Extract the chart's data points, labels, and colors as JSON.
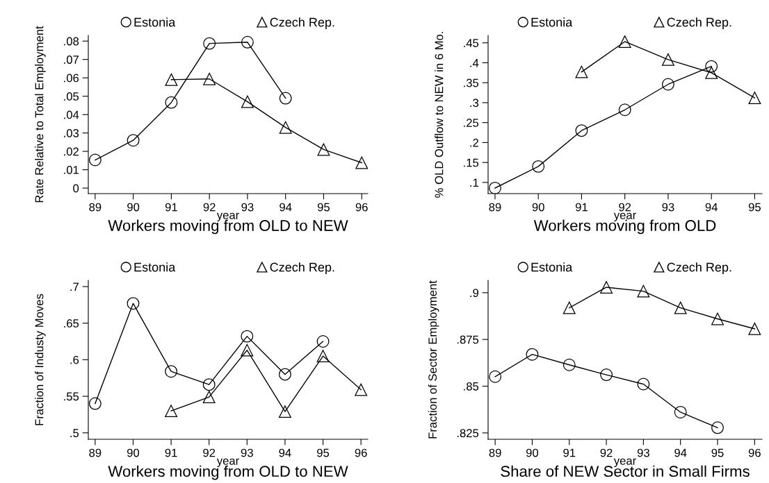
{
  "chart_data": [
    {
      "type": "line",
      "title": "Workers moving from OLD to NEW",
      "xlabel": "year",
      "ylabel": "Rate Relative to Total Employment",
      "legend": "top",
      "grid": false,
      "line_style": "solid",
      "xlim": [
        88.82,
        96.16
      ],
      "xticks": [
        89,
        90,
        91,
        92,
        93,
        94,
        95,
        96
      ],
      "ylim": [
        -0.003,
        0.0831
      ],
      "yticks": [
        0,
        {
          "value": 0.01,
          "label": ".01"
        },
        {
          "value": 0.02,
          "label": ".02"
        },
        {
          "value": 0.03,
          "label": ".03"
        },
        {
          "value": 0.04,
          "label": ".04"
        },
        {
          "value": 0.05,
          "label": ".05"
        },
        {
          "value": 0.06,
          "label": ".06"
        },
        {
          "value": 0.07,
          "label": ".07"
        },
        {
          "value": 0.08,
          "label": ".08"
        }
      ],
      "series": [
        {
          "name": "Estonia",
          "color": "#000000",
          "marker": "circle",
          "x": [
            89,
            90,
            91,
            92,
            93,
            94
          ],
          "values": [
            0.0153,
            0.026,
            0.0466,
            0.0787,
            0.0794,
            0.0489
          ]
        },
        {
          "name": "Czech Rep.",
          "color": "#000000",
          "marker": "triangle",
          "x": [
            91,
            92,
            93,
            94,
            95,
            96
          ],
          "values": [
            0.059,
            0.0594,
            0.047,
            0.033,
            0.021,
            0.0138
          ]
        }
      ]
    },
    {
      "type": "line",
      "title": "Workers moving from OLD",
      "xlabel": "year",
      "ylabel": "% OLD Outflow to NEW in 6 Mo.",
      "legend": "top",
      "grid": false,
      "line_style": "solid",
      "xlim": [
        88.84,
        95.17
      ],
      "xticks": [
        89,
        90,
        91,
        92,
        93,
        94,
        95
      ],
      "ylim": [
        0.072,
        0.4686
      ],
      "yticks": [
        {
          "value": 0.1,
          "label": ".1"
        },
        {
          "value": 0.15,
          "label": ".15"
        },
        {
          "value": 0.2,
          "label": ".2"
        },
        {
          "value": 0.25,
          "label": ".25"
        },
        {
          "value": 0.3,
          "label": ".3"
        },
        {
          "value": 0.35,
          "label": ".35"
        },
        {
          "value": 0.4,
          "label": ".4"
        },
        {
          "value": 0.45,
          "label": ".45"
        }
      ],
      "series": [
        {
          "name": "Estonia",
          "color": "#000000",
          "marker": "circle",
          "x": [
            89,
            90,
            91,
            92,
            93,
            94
          ],
          "values": [
            0.086,
            0.14,
            0.23,
            0.282,
            0.346,
            0.391
          ]
        },
        {
          "name": "Czech Rep.",
          "color": "#000000",
          "marker": "triangle",
          "x": [
            91,
            92,
            93,
            94,
            95
          ],
          "values": [
            0.377,
            0.453,
            0.408,
            0.375,
            0.312
          ]
        }
      ]
    },
    {
      "type": "line",
      "title": "Workers moving from OLD to NEW",
      "xlabel": "year",
      "ylabel": "Fraction of Industy Moves",
      "legend": "top",
      "grid": false,
      "line_style": "solid",
      "xlim": [
        88.82,
        96.18
      ],
      "xticks": [
        89,
        90,
        91,
        92,
        93,
        94,
        95,
        96
      ],
      "ylim": [
        0.4912,
        0.7085
      ],
      "yticks": [
        {
          "value": 0.5,
          "label": ".5"
        },
        {
          "value": 0.55,
          "label": ".55"
        },
        {
          "value": 0.6,
          "label": ".6"
        },
        {
          "value": 0.65,
          "label": ".65"
        },
        {
          "value": 0.7,
          "label": ".7"
        }
      ],
      "series": [
        {
          "name": "Estonia",
          "color": "#000000",
          "marker": "circle",
          "x": [
            89,
            90,
            91,
            92,
            93,
            94,
            95
          ],
          "values": [
            0.54,
            0.677,
            0.584,
            0.566,
            0.632,
            0.58,
            0.625
          ]
        },
        {
          "name": "Czech Rep.",
          "color": "#000000",
          "marker": "triangle",
          "x": [
            91,
            92,
            93,
            94,
            95,
            96
          ],
          "values": [
            0.53,
            0.549,
            0.613,
            0.529,
            0.605,
            0.559
          ]
        }
      ]
    },
    {
      "type": "line",
      "title": "Share of NEW Sector in Small Firms",
      "xlabel": "year",
      "ylabel": "Fraction of Sector Employment",
      "legend": "top",
      "grid": false,
      "line_style": "solid",
      "xlim": [
        88.81,
        96.2
      ],
      "xticks": [
        89,
        90,
        91,
        92,
        93,
        94,
        95,
        96
      ],
      "ylim": [
        0.8216,
        0.9066
      ],
      "yticks": [
        {
          "value": 0.825,
          "label": ".825"
        },
        {
          "value": 0.85,
          "label": ".85"
        },
        {
          "value": 0.875,
          "label": ".875"
        },
        {
          "value": 0.9,
          "label": ".9"
        }
      ],
      "series": [
        {
          "name": "Estonia",
          "color": "#000000",
          "marker": "circle",
          "x": [
            89,
            90,
            91,
            92,
            93,
            94,
            95
          ],
          "values": [
            0.8551,
            0.867,
            0.8614,
            0.8561,
            0.8511,
            0.8361,
            0.8278
          ]
        },
        {
          "name": "Czech Rep.",
          "color": "#000000",
          "marker": "triangle",
          "x": [
            91,
            92,
            93,
            94,
            95,
            96
          ],
          "values": [
            0.8919,
            0.9029,
            0.9008,
            0.8919,
            0.886,
            0.8807
          ]
        }
      ]
    }
  ]
}
